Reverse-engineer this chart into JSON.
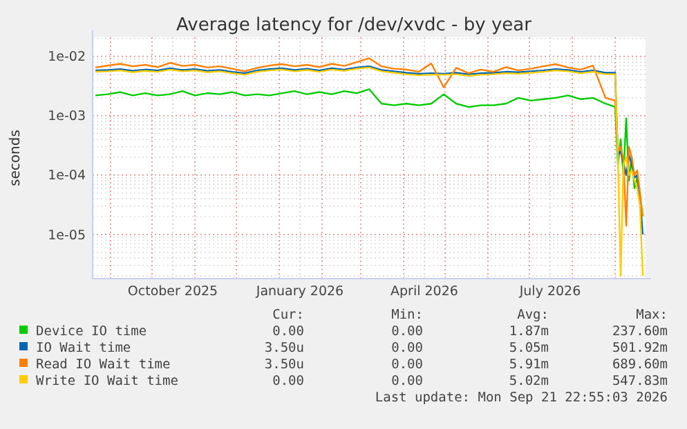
{
  "chart_data": {
    "type": "line",
    "title": "Average latency for /dev/xvdc - by year",
    "ylabel": "seconds",
    "log": "y",
    "grid": true,
    "legend": "bottom",
    "marker": "none",
    "line_style": "solid",
    "x": [
      "2025-08-21",
      "2025-08-30",
      "2025-09-08",
      "2025-09-17",
      "2025-09-26",
      "2025-10-05",
      "2025-10-14",
      "2025-10-23",
      "2025-11-01",
      "2025-11-10",
      "2025-11-19",
      "2025-11-28",
      "2025-12-07",
      "2025-12-16",
      "2025-12-25",
      "2026-01-03",
      "2026-01-12",
      "2026-01-21",
      "2026-01-30",
      "2026-02-08",
      "2026-02-17",
      "2026-02-26",
      "2026-03-07",
      "2026-03-16",
      "2026-03-25",
      "2026-04-03",
      "2026-04-12",
      "2026-04-21",
      "2026-04-30",
      "2026-05-09",
      "2026-05-18",
      "2026-05-27",
      "2026-06-05",
      "2026-06-14",
      "2026-06-23",
      "2026-07-02",
      "2026-07-11",
      "2026-07-20",
      "2026-07-29",
      "2026-08-07",
      "2026-08-16",
      "2026-08-25",
      "2026-09-01",
      "2026-09-03",
      "2026-09-05",
      "2026-09-07",
      "2026-09-09",
      "2026-09-11",
      "2026-09-13",
      "2026-09-15",
      "2026-09-17",
      "2026-09-19",
      "2026-09-21"
    ],
    "xlim": [
      "2025-08-19",
      "2026-09-23"
    ],
    "xticks": [
      {
        "value": "2025-09-01",
        "label": null
      },
      {
        "value": "2025-10-01",
        "label": null
      },
      {
        "value": "2025-10-16",
        "label": "October 2025"
      },
      {
        "value": "2025-11-01",
        "label": null
      },
      {
        "value": "2025-12-01",
        "label": null
      },
      {
        "value": "2026-01-01",
        "label": null
      },
      {
        "value": "2026-01-16",
        "label": "January 2026"
      },
      {
        "value": "2026-02-01",
        "label": null
      },
      {
        "value": "2026-03-01",
        "label": null
      },
      {
        "value": "2026-04-01",
        "label": null
      },
      {
        "value": "2026-04-16",
        "label": "April 2026"
      },
      {
        "value": "2026-05-01",
        "label": null
      },
      {
        "value": "2026-06-01",
        "label": null
      },
      {
        "value": "2026-07-01",
        "label": null
      },
      {
        "value": "2026-07-16",
        "label": "July 2026"
      },
      {
        "value": "2026-08-01",
        "label": null
      },
      {
        "value": "2026-09-01",
        "label": null
      }
    ],
    "ylim": [
      1.8e-06,
      0.021
    ],
    "yticks": [
      {
        "value": 1e-05,
        "label": "1e-05"
      },
      {
        "value": 0.0001,
        "label": "1e-04"
      },
      {
        "value": 0.001,
        "label": "1e-03"
      },
      {
        "value": 0.01,
        "label": "1e-02"
      }
    ],
    "series": [
      {
        "name": "Device IO time",
        "color": "#00cc00",
        "values": [
          0.0022,
          0.0023,
          0.0025,
          0.0022,
          0.0024,
          0.0022,
          0.0023,
          0.0026,
          0.0022,
          0.0024,
          0.0023,
          0.0025,
          0.0022,
          0.0023,
          0.0022,
          0.0024,
          0.0026,
          0.0023,
          0.0025,
          0.0023,
          0.0026,
          0.0024,
          0.0028,
          0.0016,
          0.0015,
          0.0016,
          0.0015,
          0.0016,
          0.0023,
          0.0016,
          0.0014,
          0.0015,
          0.0015,
          0.0016,
          0.002,
          0.0018,
          0.0019,
          0.002,
          0.0022,
          0.0019,
          0.002,
          0.0016,
          0.0014,
          0.00015,
          0.0004,
          0.0001,
          0.0009,
          8e-05,
          0.0002,
          6e-05,
          9e-05,
          4e-05,
          null
        ]
      },
      {
        "name": "IO Wait time",
        "color": "#0066b3",
        "values": [
          0.0058,
          0.0059,
          0.0061,
          0.0057,
          0.006,
          0.0058,
          0.0063,
          0.0059,
          0.0061,
          0.0057,
          0.0059,
          0.0055,
          0.0052,
          0.0058,
          0.0061,
          0.0063,
          0.0059,
          0.0062,
          0.0058,
          0.0063,
          0.006,
          0.0065,
          0.0068,
          0.0059,
          0.0056,
          0.0053,
          0.0051,
          0.0052,
          0.0051,
          0.0053,
          0.005,
          0.0052,
          0.0053,
          0.0055,
          0.0054,
          0.0056,
          0.0058,
          0.0061,
          0.0059,
          0.0055,
          0.0058,
          0.0053,
          0.0053,
          0.00022,
          0.00025,
          0.00016,
          0.0001,
          0.00022,
          0.00015,
          9e-05,
          0.0001,
          4e-05,
          1e-05
        ]
      },
      {
        "name": "Read IO Wait time",
        "color": "#ff8000",
        "values": [
          0.0065,
          0.007,
          0.0075,
          0.0068,
          0.0072,
          0.0066,
          0.0078,
          0.0069,
          0.0072,
          0.0065,
          0.0068,
          0.0062,
          0.0056,
          0.0064,
          0.007,
          0.0074,
          0.0068,
          0.0072,
          0.0066,
          0.0075,
          0.0069,
          0.008,
          0.0093,
          0.0068,
          0.0062,
          0.006,
          0.0055,
          0.0076,
          0.003,
          0.0064,
          0.0052,
          0.006,
          0.0055,
          0.0066,
          0.0058,
          0.0062,
          0.0068,
          0.0074,
          0.0065,
          0.006,
          0.007,
          0.002,
          0.0018,
          0.00025,
          0.0003,
          0.00018,
          1.4e-05,
          0.0003,
          0.0002,
          0.0001,
          0.00012,
          5e-05,
          2e-05
        ]
      },
      {
        "name": "Write IO Wait time",
        "color": "#ffcc00",
        "values": [
          0.0055,
          0.0056,
          0.0058,
          0.0054,
          0.0057,
          0.0055,
          0.006,
          0.0056,
          0.0058,
          0.0054,
          0.0056,
          0.0052,
          0.0049,
          0.0055,
          0.0058,
          0.006,
          0.0056,
          0.0059,
          0.0055,
          0.006,
          0.0057,
          0.0062,
          0.0065,
          0.0056,
          0.0053,
          0.005,
          0.0048,
          0.0049,
          0.0049,
          0.005,
          0.0047,
          0.0049,
          0.005,
          0.0052,
          0.0051,
          0.0053,
          0.0055,
          0.0058,
          0.0056,
          0.0052,
          0.0055,
          0.005,
          0.005,
          0.0002,
          2e-06,
          0.00015,
          0.0002,
          0.0001,
          0.00012,
          8e-05,
          6e-05,
          3e-05,
          2e-06
        ]
      }
    ],
    "annotations": [
      "Cur:",
      "Min:",
      "Avg:",
      "Max:",
      "0.00",
      "0.00",
      "1.87m",
      "237.60m",
      "3.50u",
      "0.00",
      "5.05m",
      "501.92m",
      "3.50u",
      "0.00",
      "5.91m",
      "689.60m",
      "0.00",
      "0.00",
      "5.02m",
      "547.83m",
      "Last update: Mon Sep 21 22:55:03 2026"
    ]
  }
}
